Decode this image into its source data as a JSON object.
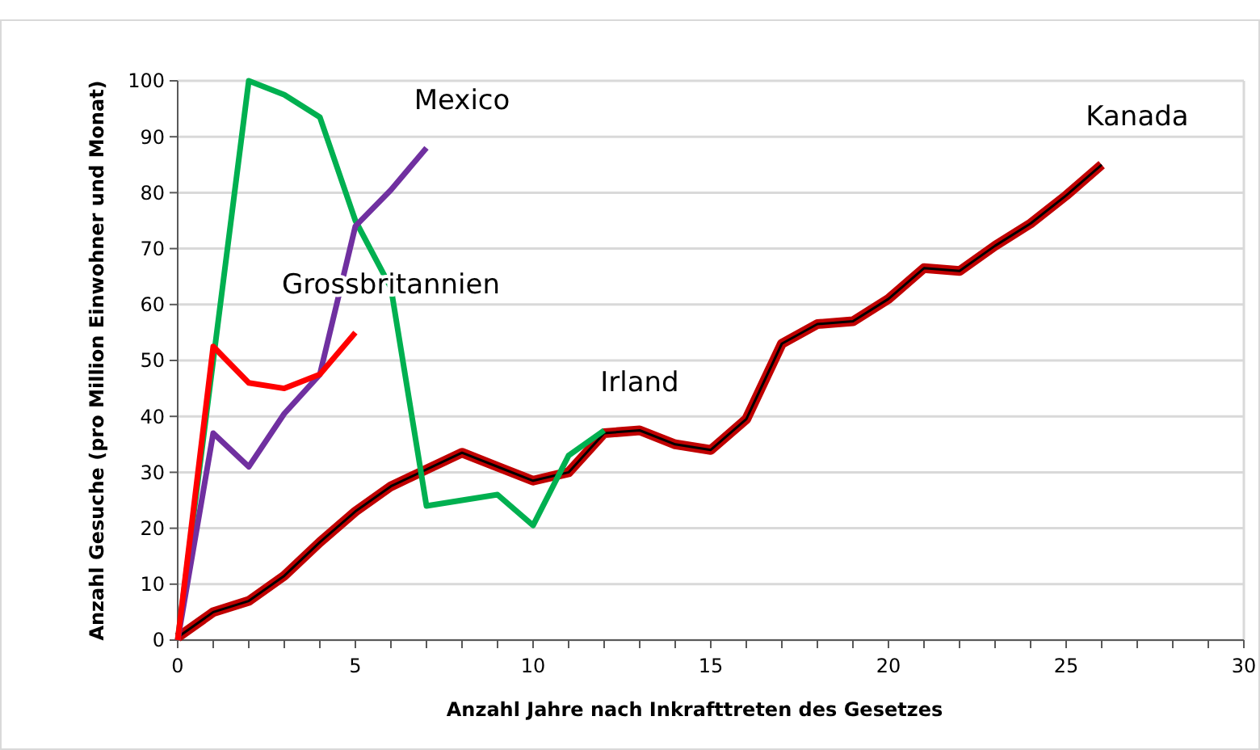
{
  "chart_data": {
    "type": "line",
    "xlabel": "Anzahl Jahre nach Inkrafttreten des Gesetzes",
    "ylabel": "Anzahl Gesuche (pro Million Einwohner und Monat)",
    "xlim": [
      0,
      30
    ],
    "xticks": [
      0,
      {
        "value": 1,
        "label": null
      },
      {
        "value": 2,
        "label": null
      },
      {
        "value": 3,
        "label": null
      },
      {
        "value": 4,
        "label": null
      },
      5,
      {
        "value": 6,
        "label": null
      },
      {
        "value": 7,
        "label": null
      },
      {
        "value": 8,
        "label": null
      },
      {
        "value": 9,
        "label": null
      },
      10,
      {
        "value": 11,
        "label": null
      },
      {
        "value": 12,
        "label": null
      },
      {
        "value": 13,
        "label": null
      },
      {
        "value": 14,
        "label": null
      },
      15,
      {
        "value": 16,
        "label": null
      },
      {
        "value": 17,
        "label": null
      },
      {
        "value": 18,
        "label": null
      },
      {
        "value": 19,
        "label": null
      },
      20,
      {
        "value": 21,
        "label": null
      },
      {
        "value": 22,
        "label": null
      },
      {
        "value": 23,
        "label": null
      },
      {
        "value": 24,
        "label": null
      },
      25,
      {
        "value": 26,
        "label": null
      },
      {
        "value": 27,
        "label": null
      },
      {
        "value": 28,
        "label": null
      },
      {
        "value": 29,
        "label": null
      },
      30
    ],
    "ylim": [
      0,
      100
    ],
    "yticks": [
      0,
      10,
      20,
      30,
      40,
      50,
      60,
      70,
      80,
      90,
      100
    ],
    "grid": "y",
    "marker": "none",
    "line_style": "solid",
    "x": [
      0,
      1,
      2,
      3,
      4,
      5,
      6,
      7,
      8,
      9,
      10,
      11,
      12,
      13,
      14,
      15,
      16,
      17,
      18,
      19,
      20,
      21,
      22,
      23,
      24,
      25,
      26
    ],
    "series": [
      {
        "name": "Kanada",
        "color": "#c00000",
        "values": [
          0.5,
          5,
          7,
          11.5,
          17.5,
          23,
          27.5,
          30.5,
          33.5,
          31,
          28.5,
          30,
          37,
          37.5,
          35,
          34,
          39.5,
          53,
          56.5,
          57,
          61,
          66.5,
          66,
          70.5,
          74.5,
          79.5,
          85
        ]
      },
      {
        "name": "Irland",
        "color": "#00b050",
        "x": [
          0,
          1,
          2,
          3,
          4,
          5,
          6,
          7,
          8,
          9,
          10,
          11,
          12
        ],
        "values": [
          0,
          50,
          100,
          97.5,
          93.5,
          75,
          63,
          24,
          25,
          26,
          20.5,
          33,
          37.5
        ]
      },
      {
        "name": "Mexico",
        "color": "#7030a0",
        "x": [
          0,
          1,
          2,
          3,
          4,
          5,
          6,
          7
        ],
        "values": [
          0,
          37,
          31,
          40.5,
          47.5,
          74,
          80.5,
          88
        ]
      },
      {
        "name": "Grossbritannien",
        "color": "#ff0000",
        "x": [
          0,
          1,
          2,
          3,
          4,
          5
        ],
        "values": [
          0,
          52.5,
          46,
          45,
          47.5,
          55
        ]
      }
    ]
  }
}
